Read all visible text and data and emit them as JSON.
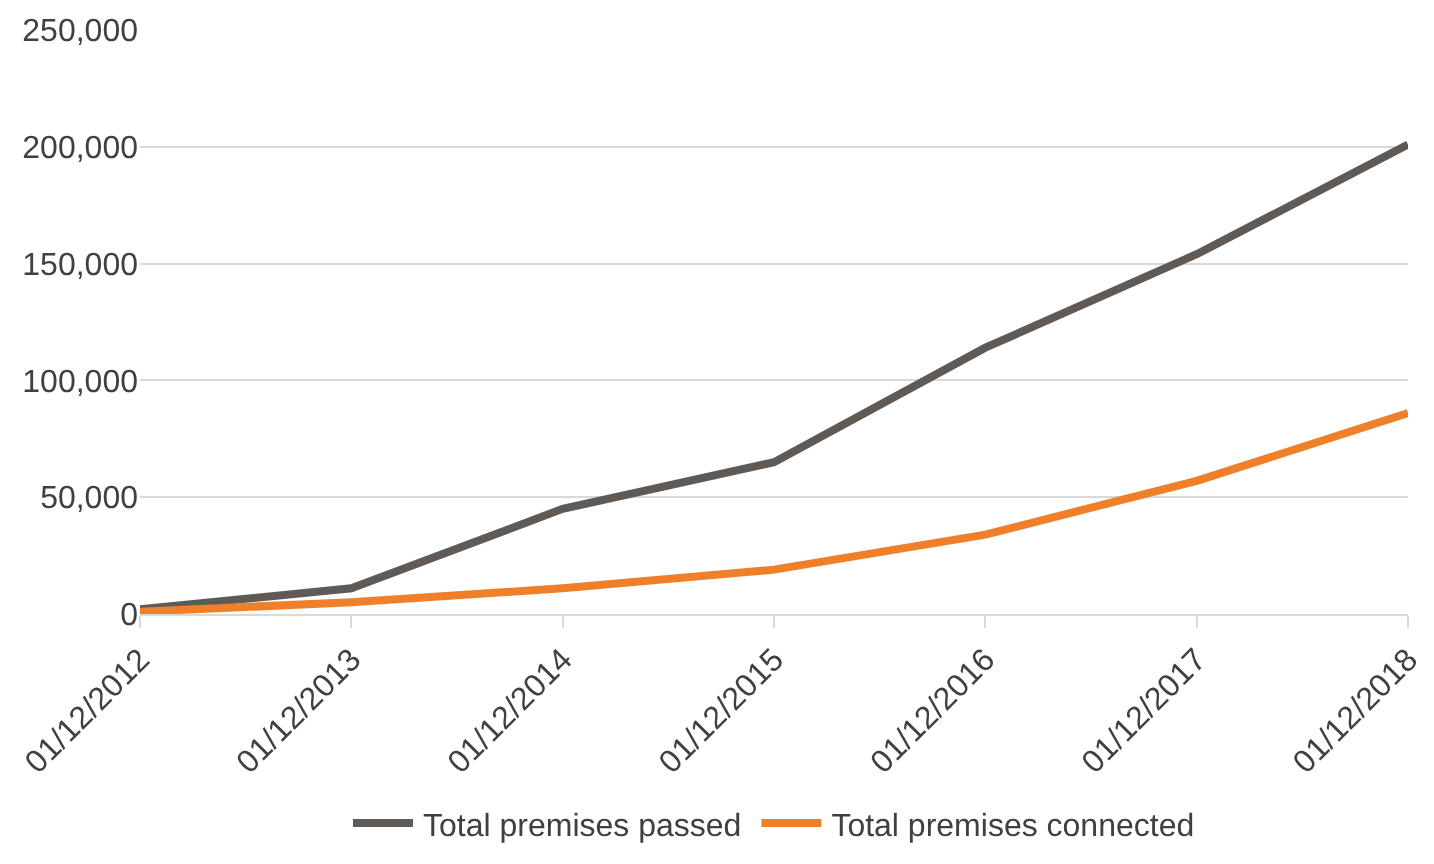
{
  "chart_data": {
    "type": "line",
    "categories": [
      "01/12/2012",
      "01/12/2013",
      "01/12/2014",
      "01/12/2015",
      "01/12/2016",
      "01/12/2017",
      "01/12/2018"
    ],
    "series": [
      {
        "name": "Total premises passed",
        "color": "#605a56",
        "values": [
          2000,
          11000,
          45000,
          65000,
          114000,
          154000,
          201000
        ]
      },
      {
        "name": "Total premises connected",
        "color": "#f07f2a",
        "values": [
          1000,
          5000,
          11000,
          19000,
          34000,
          57000,
          86000
        ]
      }
    ],
    "ylim": [
      0,
      250000
    ],
    "yticks": [
      {
        "value": 0,
        "label": "0"
      },
      {
        "value": 50000,
        "label": "50,000"
      },
      {
        "value": 100000,
        "label": "100,000"
      },
      {
        "value": 150000,
        "label": "150,000"
      },
      {
        "value": 200000,
        "label": "200,000"
      },
      {
        "value": 250000,
        "label": "250,000"
      }
    ],
    "grid": "y",
    "legend": "bottom",
    "marker": "none",
    "line_style": "solid"
  }
}
